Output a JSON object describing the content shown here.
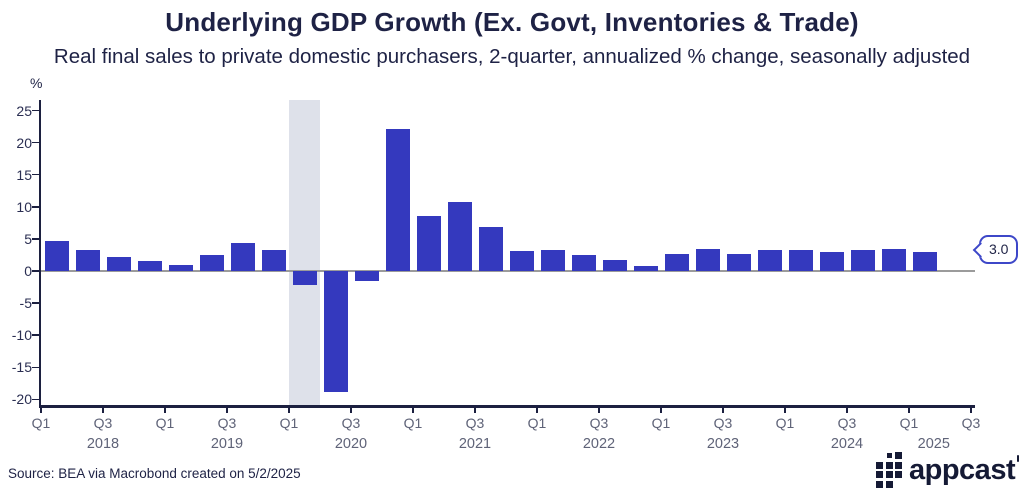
{
  "footer": {
    "source": "Source: BEA via Macrobond created on 5/2/2025",
    "brand": "appcast"
  },
  "chart_data": {
    "type": "bar",
    "title": "Underlying GDP Growth (Ex. Govt, Inventories & Trade)",
    "subtitle": "Real final sales to private domestic purchasers, 2-quarter, annualized % change, seasonally adjusted",
    "unit_label": "%",
    "categories": [
      "2018 Q1",
      "2018 Q2",
      "2018 Q3",
      "2018 Q4",
      "2019 Q1",
      "2019 Q2",
      "2019 Q3",
      "2019 Q4",
      "2020 Q1",
      "2020 Q2",
      "2020 Q3",
      "2020 Q4",
      "2021 Q1",
      "2021 Q2",
      "2021 Q3",
      "2021 Q4",
      "2022 Q1",
      "2022 Q2",
      "2022 Q3",
      "2022 Q4",
      "2023 Q1",
      "2023 Q2",
      "2023 Q3",
      "2023 Q4",
      "2024 Q1",
      "2024 Q2",
      "2024 Q3",
      "2024 Q4",
      "2025 Q1"
    ],
    "values": [
      4.7,
      3.3,
      2.2,
      1.5,
      1.0,
      2.5,
      4.4,
      3.2,
      -2.2,
      -18.9,
      -1.6,
      22.1,
      8.5,
      10.8,
      6.9,
      3.1,
      3.3,
      2.5,
      1.7,
      0.8,
      2.6,
      3.5,
      2.6,
      3.2,
      3.3,
      3.0,
      3.2,
      3.4,
      3.0
    ],
    "ylim": [
      -21,
      26.5
    ],
    "yticks": [
      25,
      20,
      15,
      10,
      5,
      0,
      -5,
      -10,
      -15,
      -20
    ],
    "x_ticks": [
      {
        "label": "Q1",
        "pos": 0
      },
      {
        "label": "Q3",
        "pos": 2
      },
      {
        "label": "Q1",
        "pos": 4
      },
      {
        "label": "Q3",
        "pos": 6
      },
      {
        "label": "Q1",
        "pos": 8
      },
      {
        "label": "Q3",
        "pos": 10
      },
      {
        "label": "Q1",
        "pos": 12
      },
      {
        "label": "Q3",
        "pos": 14
      },
      {
        "label": "Q1",
        "pos": 16
      },
      {
        "label": "Q3",
        "pos": 18
      },
      {
        "label": "Q1",
        "pos": 20
      },
      {
        "label": "Q3",
        "pos": 22
      },
      {
        "label": "Q1",
        "pos": 24
      },
      {
        "label": "Q3",
        "pos": 26
      },
      {
        "label": "Q1",
        "pos": 28
      },
      {
        "label": "Q3",
        "pos": 30
      }
    ],
    "year_labels": [
      {
        "label": "2018",
        "pos": 2
      },
      {
        "label": "2019",
        "pos": 6
      },
      {
        "label": "2020",
        "pos": 10
      },
      {
        "label": "2021",
        "pos": 14
      },
      {
        "label": "2022",
        "pos": 18
      },
      {
        "label": "2023",
        "pos": 22
      },
      {
        "label": "2024",
        "pos": 26
      },
      {
        "label": "2025",
        "pos": 28.8
      }
    ],
    "recession_band": {
      "start_quarter": "2020 Q1",
      "end_quarter": "2020 Q2",
      "start_pos": 8,
      "end_pos": 9
    },
    "callout": {
      "value": "3.0",
      "points_to": "2025 Q1"
    },
    "grid": false,
    "legend": false,
    "colors": {
      "bar": "#3439BE",
      "band": "#DEE1EA",
      "axis": "#1C2040",
      "zero_line": "#9B9B9B",
      "text_dark": "#1E2245",
      "text_muted": "#5F6378",
      "callout_border": "#3D47C8",
      "brand": "#151A35"
    }
  }
}
